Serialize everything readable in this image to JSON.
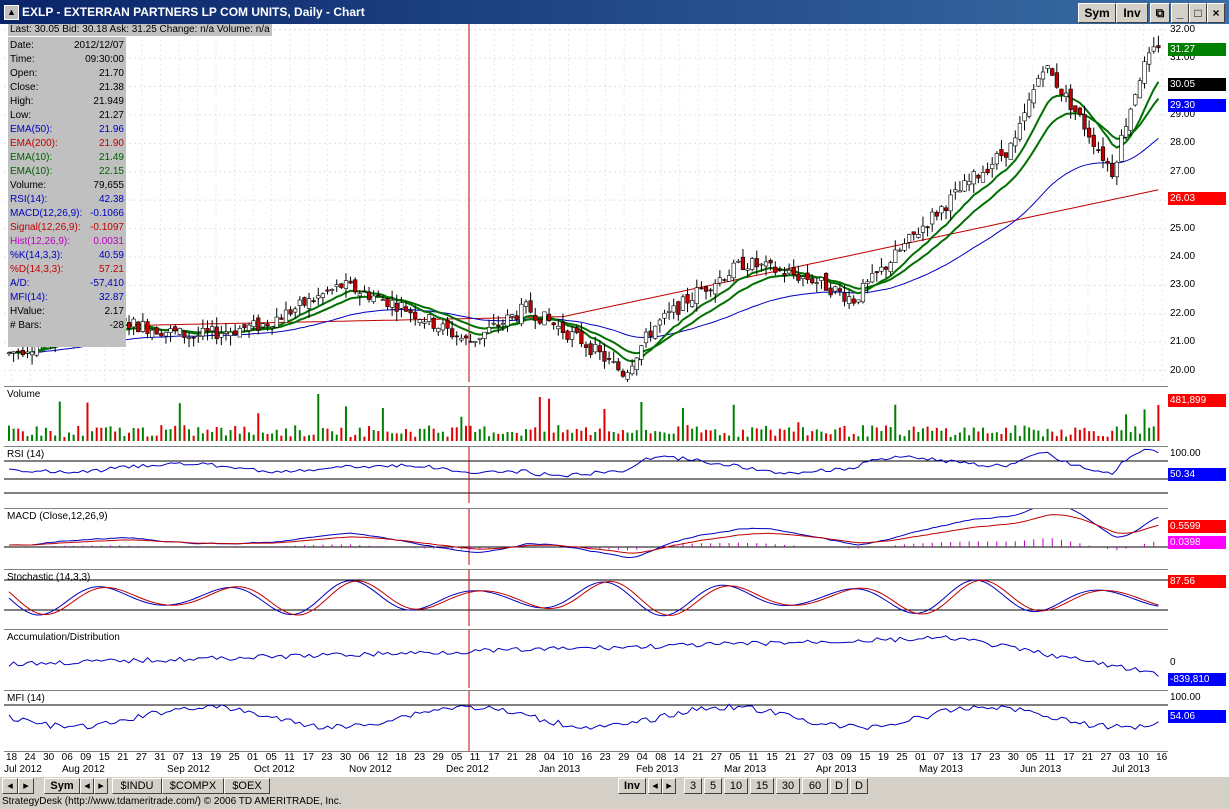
{
  "window": {
    "title": "EXLP - EXTERRAN PARTNERS LP COM UNITS, Daily - Chart",
    "sym_button": "Sym",
    "inv_button": "Inv"
  },
  "quote_bar": {
    "text": "Last: 30.05  Bid: 30.18  Ask: 31.25  Change: n/a  Volume: n/a"
  },
  "info_panel": [
    {
      "label": "Date:",
      "value": "2012/12/07",
      "color": "#000000"
    },
    {
      "label": "Time:",
      "value": "09:30:00",
      "color": "#000000"
    },
    {
      "label": "Open:",
      "value": "21.70",
      "color": "#000000"
    },
    {
      "label": "Close:",
      "value": "21.38",
      "color": "#000000"
    },
    {
      "label": "High:",
      "value": "21.949",
      "color": "#000000"
    },
    {
      "label": "Low:",
      "value": "21.27",
      "color": "#000000"
    },
    {
      "label": "EMA(50):",
      "value": "21.96",
      "color": "#0000c0"
    },
    {
      "label": "EMA(200):",
      "value": "21.90",
      "color": "#c00000"
    },
    {
      "label": "EMA(10):",
      "value": "21.49",
      "color": "#006000"
    },
    {
      "label": "EMA(10):",
      "value": "22.15",
      "color": "#006000"
    },
    {
      "label": "Volume:",
      "value": "79,655",
      "color": "#000000"
    },
    {
      "label": "RSI(14):",
      "value": "42.38",
      "color": "#0000c0"
    },
    {
      "label": "MACD(12,26,9):",
      "value": "-0.1066",
      "color": "#0000c0"
    },
    {
      "label": "Signal(12,26,9):",
      "value": "-0.1097",
      "color": "#c00000"
    },
    {
      "label": "Hist(12,26,9):",
      "value": "0.0031",
      "color": "#c000c0"
    },
    {
      "label": "%K(14,3,3):",
      "value": "40.59",
      "color": "#0000c0"
    },
    {
      "label": "%D(14,3,3):",
      "value": "57.21",
      "color": "#c00000"
    },
    {
      "label": "A/D:",
      "value": "-57,410",
      "color": "#0000c0"
    },
    {
      "label": "MFI(14):",
      "value": "32.87",
      "color": "#0000c0"
    },
    {
      "label": "HValue:",
      "value": "2.17",
      "color": "#000000"
    },
    {
      "label": "# Bars:",
      "value": "-28",
      "color": "#000000"
    }
  ],
  "price_scale": {
    "ticks": [
      "32.00",
      "31.00",
      "30.00",
      "29.00",
      "28.00",
      "27.00",
      "26.00",
      "25.00",
      "24.00",
      "23.00",
      "22.00",
      "21.00",
      "20.00"
    ],
    "badges": [
      {
        "value": "31.27",
        "color": "#008000"
      },
      {
        "value": "30.05",
        "color": "#000000"
      },
      {
        "value": "29.30",
        "color": "#0000ff"
      },
      {
        "value": "26.03",
        "color": "#ff0000"
      }
    ]
  },
  "panes": {
    "volume": {
      "label": "Volume",
      "badge": "481,899"
    },
    "rsi": {
      "label": "RSI (14)",
      "top": "100.00",
      "badge": "50.34"
    },
    "macd": {
      "label": "MACD (Close,12,26,9)",
      "badge1": "0.5599",
      "badge2": "0.0398"
    },
    "stoch": {
      "label": "Stochastic (14,3,3)",
      "badge": "87.56"
    },
    "ad": {
      "label": "Accumulation/Distribution",
      "zero": "0",
      "badge": "-839,810"
    },
    "mfi": {
      "label": "MFI (14)",
      "top": "100.00",
      "badge": "54.06"
    }
  },
  "x_axis": {
    "days": [
      "18",
      "24",
      "30",
      "06",
      "09",
      "15",
      "21",
      "27",
      "31",
      "07",
      "13",
      "19",
      "25",
      "01",
      "05",
      "11",
      "17",
      "23",
      "30",
      "06",
      "12",
      "18",
      "23",
      "29",
      "05",
      "11",
      "17",
      "21",
      "28",
      "04",
      "10",
      "16",
      "23",
      "29",
      "04",
      "08",
      "14",
      "21",
      "27",
      "05",
      "11",
      "15",
      "21",
      "27",
      "03",
      "09",
      "15",
      "19",
      "25",
      "01",
      "07",
      "13",
      "17",
      "23",
      "30",
      "05",
      "11",
      "17",
      "21",
      "27",
      "03",
      "10",
      "16"
    ],
    "months": [
      {
        "label": "Jul 2012"
      },
      {
        "label": "Aug 2012"
      },
      {
        "label": "Sep 2012"
      },
      {
        "label": "Oct 2012"
      },
      {
        "label": "Nov 2012"
      },
      {
        "label": "Dec 2012"
      },
      {
        "label": "Jan 2013"
      },
      {
        "label": "Feb 2013"
      },
      {
        "label": "Mar 2013"
      },
      {
        "label": "Apr 2013"
      },
      {
        "label": "May 2013"
      },
      {
        "label": "Jun 2013"
      },
      {
        "label": "Jul 2013"
      }
    ]
  },
  "bottom_bar": {
    "sym": "Sym",
    "symbols": [
      "$INDU",
      "$COMPX",
      "$OEX"
    ],
    "inv": "Inv",
    "intervals": [
      "3",
      "5",
      "10",
      "15",
      "30",
      "60",
      "D",
      "D"
    ]
  },
  "status": "StrategyDesk (http://www.tdameritrade.com/) © 2006 TD AMERITRADE, Inc.",
  "chart_data": {
    "type": "candlestick",
    "title": "EXLP - EXTERRAN PARTNERS LP COM UNITS, Daily - Chart",
    "ylim": [
      19.6,
      32.2
    ],
    "x_range": [
      "2012-07-18",
      "2013-07-16"
    ],
    "series": [
      {
        "name": "EMA(50)",
        "color": "#0000c0",
        "x": [
          "2012-07",
          "2012-09",
          "2012-11",
          "2012-12",
          "2013-01",
          "2013-02",
          "2013-03",
          "2013-04",
          "2013-05",
          "2013-06",
          "2013-07"
        ],
        "values": [
          20.6,
          21.4,
          21.9,
          21.5,
          21.4,
          22.6,
          24.1,
          26.5,
          28.0,
          28.3,
          29.3
        ]
      },
      {
        "name": "EMA(200)",
        "color": "#c00000",
        "x": [
          "2012-07",
          "2012-10",
          "2012-12",
          "2013-02",
          "2013-04",
          "2013-06",
          "2013-07"
        ],
        "values": [
          21.5,
          21.9,
          21.9,
          22.2,
          24.0,
          25.2,
          26.03
        ]
      }
    ]
  }
}
